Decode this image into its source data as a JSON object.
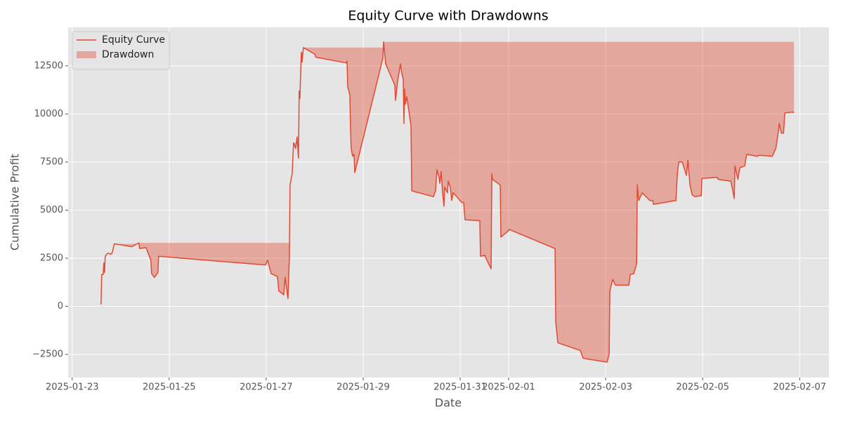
{
  "chart_data": {
    "type": "line",
    "title": "Equity Curve with Drawdowns",
    "xlabel": "Date",
    "ylabel": "Cumulative Profit",
    "x": [
      "2025-01-23T14:16",
      "2025-01-23T14:37",
      "2025-01-23T15:18",
      "2025-01-23T15:39",
      "2025-01-23T16:00",
      "2025-01-23T16:21",
      "2025-01-23T17:24",
      "2025-01-23T18:26",
      "2025-01-23T19:08",
      "2025-01-23T19:50",
      "2025-01-23T20:52",
      "2025-01-24T05:34",
      "2025-01-24T09:03",
      "2025-01-24T09:23",
      "2025-01-24T12:31",
      "2025-01-24T14:57",
      "2025-01-24T15:18",
      "2025-01-24T16:42",
      "2025-01-24T18:26",
      "2025-01-24T18:47",
      "2025-01-26T23:39",
      "2025-01-27T00:42",
      "2025-01-27T02:26",
      "2025-01-27T05:34",
      "2025-01-27T06:16",
      "2025-01-27T08:42",
      "2025-01-27T09:23",
      "2025-01-27T10:26",
      "2025-01-27T10:47",
      "2025-01-27T11:29",
      "2025-01-27T11:50",
      "2025-01-27T12:52",
      "2025-01-27T13:34",
      "2025-01-27T14:37",
      "2025-01-27T15:18",
      "2025-01-27T16:00",
      "2025-01-27T16:21",
      "2025-01-27T16:42",
      "2025-01-27T17:24",
      "2025-01-27T17:44",
      "2025-01-27T18:26",
      "2025-01-28T00:10",
      "2025-01-28T00:31",
      "2025-01-28T15:39",
      "2025-01-28T16:00",
      "2025-01-28T16:21",
      "2025-01-28T17:24",
      "2025-01-28T17:44",
      "2025-01-28T18:05",
      "2025-01-28T18:47",
      "2025-01-28T19:29",
      "2025-01-28T19:50",
      "2025-01-29T09:44",
      "2025-01-29T10:05",
      "2025-01-29T11:08",
      "2025-01-29T15:39",
      "2025-01-29T16:00",
      "2025-01-29T17:03",
      "2025-01-29T18:26",
      "2025-01-29T19:08",
      "2025-01-29T19:50",
      "2025-01-29T20:10",
      "2025-01-29T20:31",
      "2025-01-29T20:52",
      "2025-01-29T21:34",
      "2025-01-29T22:57",
      "2025-01-29T23:39",
      "2025-01-30T00:05",
      "2025-01-30T10:47",
      "2025-01-30T11:50",
      "2025-01-30T12:31",
      "2025-01-30T13:34",
      "2025-01-30T13:55",
      "2025-01-30T14:37",
      "2025-01-30T15:18",
      "2025-01-30T16:00",
      "2025-01-30T16:21",
      "2025-01-30T17:44",
      "2025-01-30T18:05",
      "2025-01-30T19:08",
      "2025-01-30T19:50",
      "2025-01-30T20:31",
      "2025-01-30T22:16",
      "2025-01-31T00:42",
      "2025-01-31T01:44",
      "2025-01-31T02:26",
      "2025-01-31T09:44",
      "2025-01-31T10:05",
      "2025-01-31T12:10",
      "2025-01-31T13:13",
      "2025-01-31T15:18",
      "2025-01-31T15:39",
      "2025-01-31T16:00",
      "2025-01-31T19:50",
      "2025-01-31T20:10",
      "2025-01-31T23:39",
      "2025-02-01T00:10",
      "2025-02-01T22:57",
      "2025-02-01T23:18",
      "2025-02-02T00:21",
      "2025-02-02T11:29",
      "2025-02-02T12:52",
      "2025-02-03T00:42",
      "2025-02-03T01:44",
      "2025-02-03T02:05",
      "2025-02-03T03:29",
      "2025-02-03T04:52",
      "2025-02-03T11:29",
      "2025-02-03T12:10",
      "2025-02-03T13:55",
      "2025-02-03T15:18",
      "2025-02-03T15:39",
      "2025-02-03T16:21",
      "2025-02-03T18:05",
      "2025-02-03T21:55",
      "2025-02-03T23:18",
      "2025-02-03T23:39",
      "2025-02-04T10:47",
      "2025-02-04T11:29",
      "2025-02-04T12:10",
      "2025-02-04T13:55",
      "2025-02-04T16:00",
      "2025-02-04T16:42",
      "2025-02-04T17:44",
      "2025-02-04T18:47",
      "2025-02-04T20:10",
      "2025-02-04T23:18",
      "2025-02-04T23:39",
      "2025-02-05T07:18",
      "2025-02-05T07:39",
      "2025-02-05T13:55",
      "2025-02-05T14:37",
      "2025-02-05T15:39",
      "2025-02-05T16:00",
      "2025-02-05T17:24",
      "2025-02-05T18:26",
      "2025-02-05T20:52",
      "2025-02-05T21:34",
      "2025-02-05T21:55",
      "2025-02-06T03:08",
      "2025-02-06T03:50",
      "2025-02-06T10:26",
      "2025-02-06T12:10",
      "2025-02-06T13:13",
      "2025-02-06T13:55",
      "2025-02-06T14:57",
      "2025-02-06T16:00",
      "2025-02-06T16:42",
      "2025-02-06T20:31",
      "2025-02-06T21:13"
    ],
    "series": [
      {
        "name": "Equity Curve",
        "color": "#e24a33",
        "values": [
          100,
          1650,
          1650,
          2250,
          1750,
          2600,
          2750,
          2750,
          2700,
          2800,
          3250,
          3100,
          3300,
          3000,
          3050,
          2400,
          1700,
          1500,
          1750,
          2600,
          2150,
          2400,
          1700,
          1550,
          800,
          600,
          1500,
          650,
          400,
          2500,
          6300,
          6900,
          8500,
          8200,
          8800,
          7700,
          11200,
          10800,
          13200,
          12700,
          13450,
          13100,
          12950,
          12650,
          12750,
          11400,
          11000,
          9300,
          8200,
          7800,
          7900,
          6950,
          12900,
          13750,
          12600,
          11500,
          10700,
          11700,
          12600,
          12100,
          11800,
          9500,
          11300,
          10500,
          10900,
          9900,
          9400,
          6000,
          5700,
          6000,
          7100,
          6700,
          6400,
          7000,
          5900,
          5200,
          6200,
          5900,
          6500,
          6200,
          5500,
          5900,
          5700,
          5400,
          5400,
          4500,
          4450,
          2600,
          2650,
          2400,
          1950,
          6900,
          6600,
          6300,
          3600,
          3900,
          4000,
          3000,
          -800,
          -1900,
          -2300,
          -2700,
          -2900,
          -2500,
          800,
          1400,
          1100,
          1100,
          1650,
          1700,
          2200,
          6300,
          5500,
          5900,
          5500,
          5500,
          5300,
          5500,
          6900,
          7500,
          7500,
          6800,
          7600,
          6300,
          5800,
          5700,
          5750,
          6650,
          6700,
          6600,
          6500,
          6150,
          5600,
          7300,
          6600,
          7200,
          7300,
          7800,
          7900,
          7800,
          7850,
          7800,
          8200,
          8900,
          9500,
          9000,
          9000,
          10050,
          10100,
          10050
        ]
      }
    ],
    "drawdown": {
      "name": "Drawdown",
      "color": "#e24a33"
    },
    "xlim": [
      "2025-01-22T22:00",
      "2025-02-07T14:30"
    ],
    "xticks": [
      "2025-01-23",
      "2025-01-25",
      "2025-01-27",
      "2025-01-29",
      "2025-01-31",
      "2025-02-01",
      "2025-02-03",
      "2025-02-05",
      "2025-02-07"
    ],
    "ylim": [
      -3700,
      14500
    ],
    "yticks": [
      {
        "value": -2500,
        "label": "−2500"
      },
      0,
      2500,
      5000,
      7500,
      10000,
      12500
    ],
    "grid": true,
    "legend": "upper left"
  }
}
